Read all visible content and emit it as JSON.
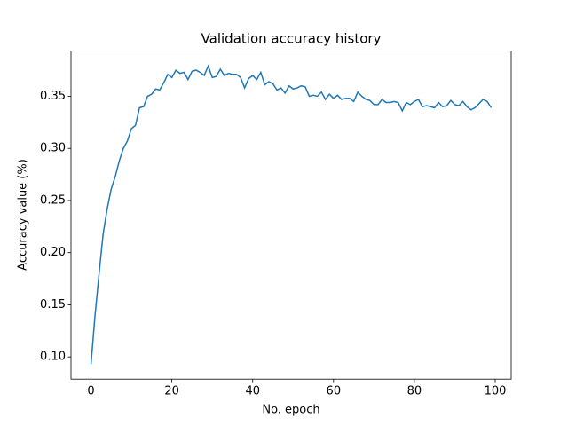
{
  "chart_data": {
    "type": "line",
    "title": "Validation accuracy history",
    "x_label": "No. epoch",
    "y_label": "Accuracy value (%)",
    "x": [
      0,
      1,
      2,
      3,
      4,
      5,
      6,
      7,
      8,
      9,
      10,
      11,
      12,
      13,
      14,
      15,
      16,
      17,
      18,
      19,
      20,
      21,
      22,
      23,
      24,
      25,
      26,
      27,
      28,
      29,
      30,
      31,
      32,
      33,
      34,
      35,
      36,
      37,
      38,
      39,
      40,
      41,
      42,
      43,
      44,
      45,
      46,
      47,
      48,
      49,
      50,
      51,
      52,
      53,
      54,
      55,
      56,
      57,
      58,
      59,
      60,
      61,
      62,
      63,
      64,
      65,
      66,
      67,
      68,
      69,
      70,
      71,
      72,
      73,
      74,
      75,
      76,
      77,
      78,
      79,
      80,
      81,
      82,
      83,
      84,
      85,
      86,
      87,
      88,
      89,
      90,
      91,
      92,
      93,
      94,
      95,
      96,
      97,
      98,
      99
    ],
    "series": [
      {
        "name": "Validation accuracy",
        "color": "#1f77b4",
        "values": [
          0.093,
          0.14,
          0.18,
          0.218,
          0.242,
          0.261,
          0.273,
          0.288,
          0.3,
          0.307,
          0.319,
          0.322,
          0.339,
          0.34,
          0.35,
          0.352,
          0.357,
          0.356,
          0.363,
          0.371,
          0.368,
          0.375,
          0.372,
          0.373,
          0.366,
          0.374,
          0.375,
          0.373,
          0.37,
          0.379,
          0.368,
          0.369,
          0.376,
          0.37,
          0.372,
          0.371,
          0.371,
          0.368,
          0.358,
          0.367,
          0.37,
          0.366,
          0.373,
          0.361,
          0.364,
          0.362,
          0.356,
          0.358,
          0.353,
          0.36,
          0.357,
          0.358,
          0.36,
          0.359,
          0.35,
          0.351,
          0.35,
          0.354,
          0.347,
          0.352,
          0.348,
          0.351,
          0.347,
          0.348,
          0.348,
          0.345,
          0.354,
          0.35,
          0.347,
          0.346,
          0.342,
          0.342,
          0.347,
          0.344,
          0.344,
          0.345,
          0.344,
          0.336,
          0.344,
          0.342,
          0.345,
          0.347,
          0.34,
          0.341,
          0.34,
          0.339,
          0.344,
          0.34,
          0.341,
          0.346,
          0.342,
          0.341,
          0.345,
          0.34,
          0.337,
          0.339,
          0.343,
          0.347,
          0.345,
          0.339
        ]
      }
    ],
    "xlim": [
      -4.95,
      103.95
    ],
    "ylim": [
      0.0787,
      0.3933
    ],
    "xticks": [
      0,
      20,
      40,
      60,
      80,
      100
    ],
    "yticks": [
      {
        "value": 0.1,
        "label": "0.10"
      },
      0.15,
      {
        "value": 0.2,
        "label": "0.20"
      },
      0.25,
      {
        "value": 0.3,
        "label": "0.30"
      },
      0.35
    ]
  }
}
